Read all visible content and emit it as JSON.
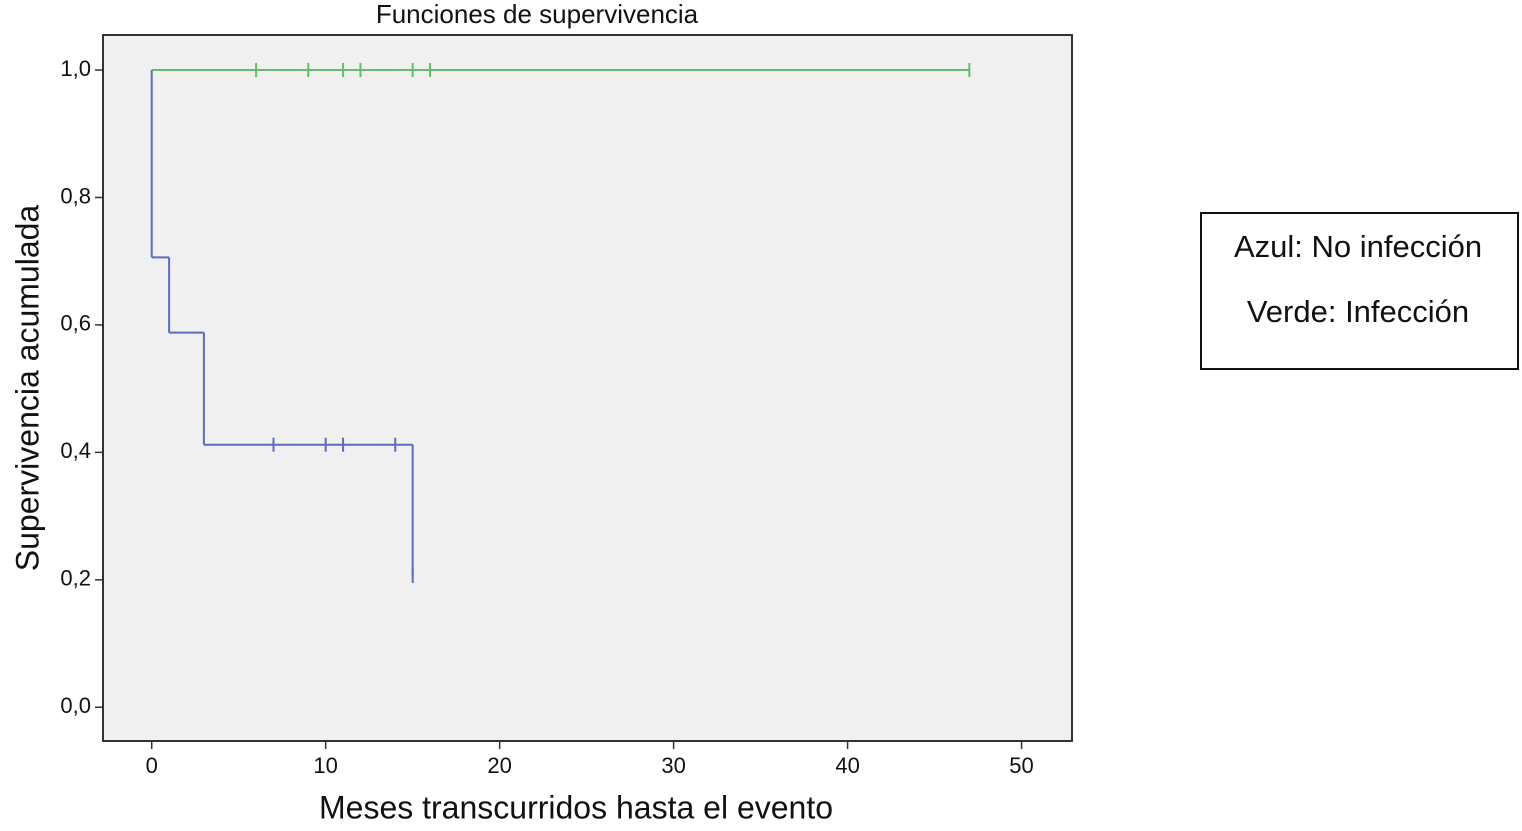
{
  "chart_data": {
    "type": "step",
    "title": "Funciones de supervivencia",
    "x_label": "Meses transcurridos hasta el evento",
    "y_label": "Supervivencia acumulada",
    "legend_text": [
      "Azul: No infección",
      "Verde: Infección"
    ],
    "xlim": [
      -2.8,
      52.9
    ],
    "ylim": [
      -0.053,
      1.055
    ],
    "xticks": [
      0,
      10,
      20,
      30,
      40,
      50
    ],
    "yticks": [
      {
        "value": 0,
        "label": "0,0"
      },
      {
        "value": 0.2,
        "label": "0,2"
      },
      {
        "value": 0.4,
        "label": "0,4"
      },
      {
        "value": 0.6,
        "label": "0,6"
      },
      {
        "value": 0.8,
        "label": "0,8"
      },
      {
        "value": 1,
        "label": "1,0"
      }
    ],
    "series": [
      {
        "color": "#5b6bbf",
        "x": [
          0,
          0,
          1,
          3,
          15,
          15
        ],
        "values": [
          1,
          0.706,
          0.588,
          0.412,
          0.412,
          0.206
        ],
        "censored_x": [
          7,
          10,
          11,
          14,
          15
        ],
        "censored_values": [
          0.412,
          0.412,
          0.412,
          0.412,
          0.206
        ]
      },
      {
        "color": "#62be6c",
        "x": [
          0,
          47
        ],
        "values": [
          1,
          1
        ],
        "censored_x": [
          6,
          9,
          11,
          12,
          15,
          16,
          47
        ],
        "censored_values": [
          1,
          1,
          1,
          1,
          1,
          1,
          1
        ]
      }
    ]
  }
}
